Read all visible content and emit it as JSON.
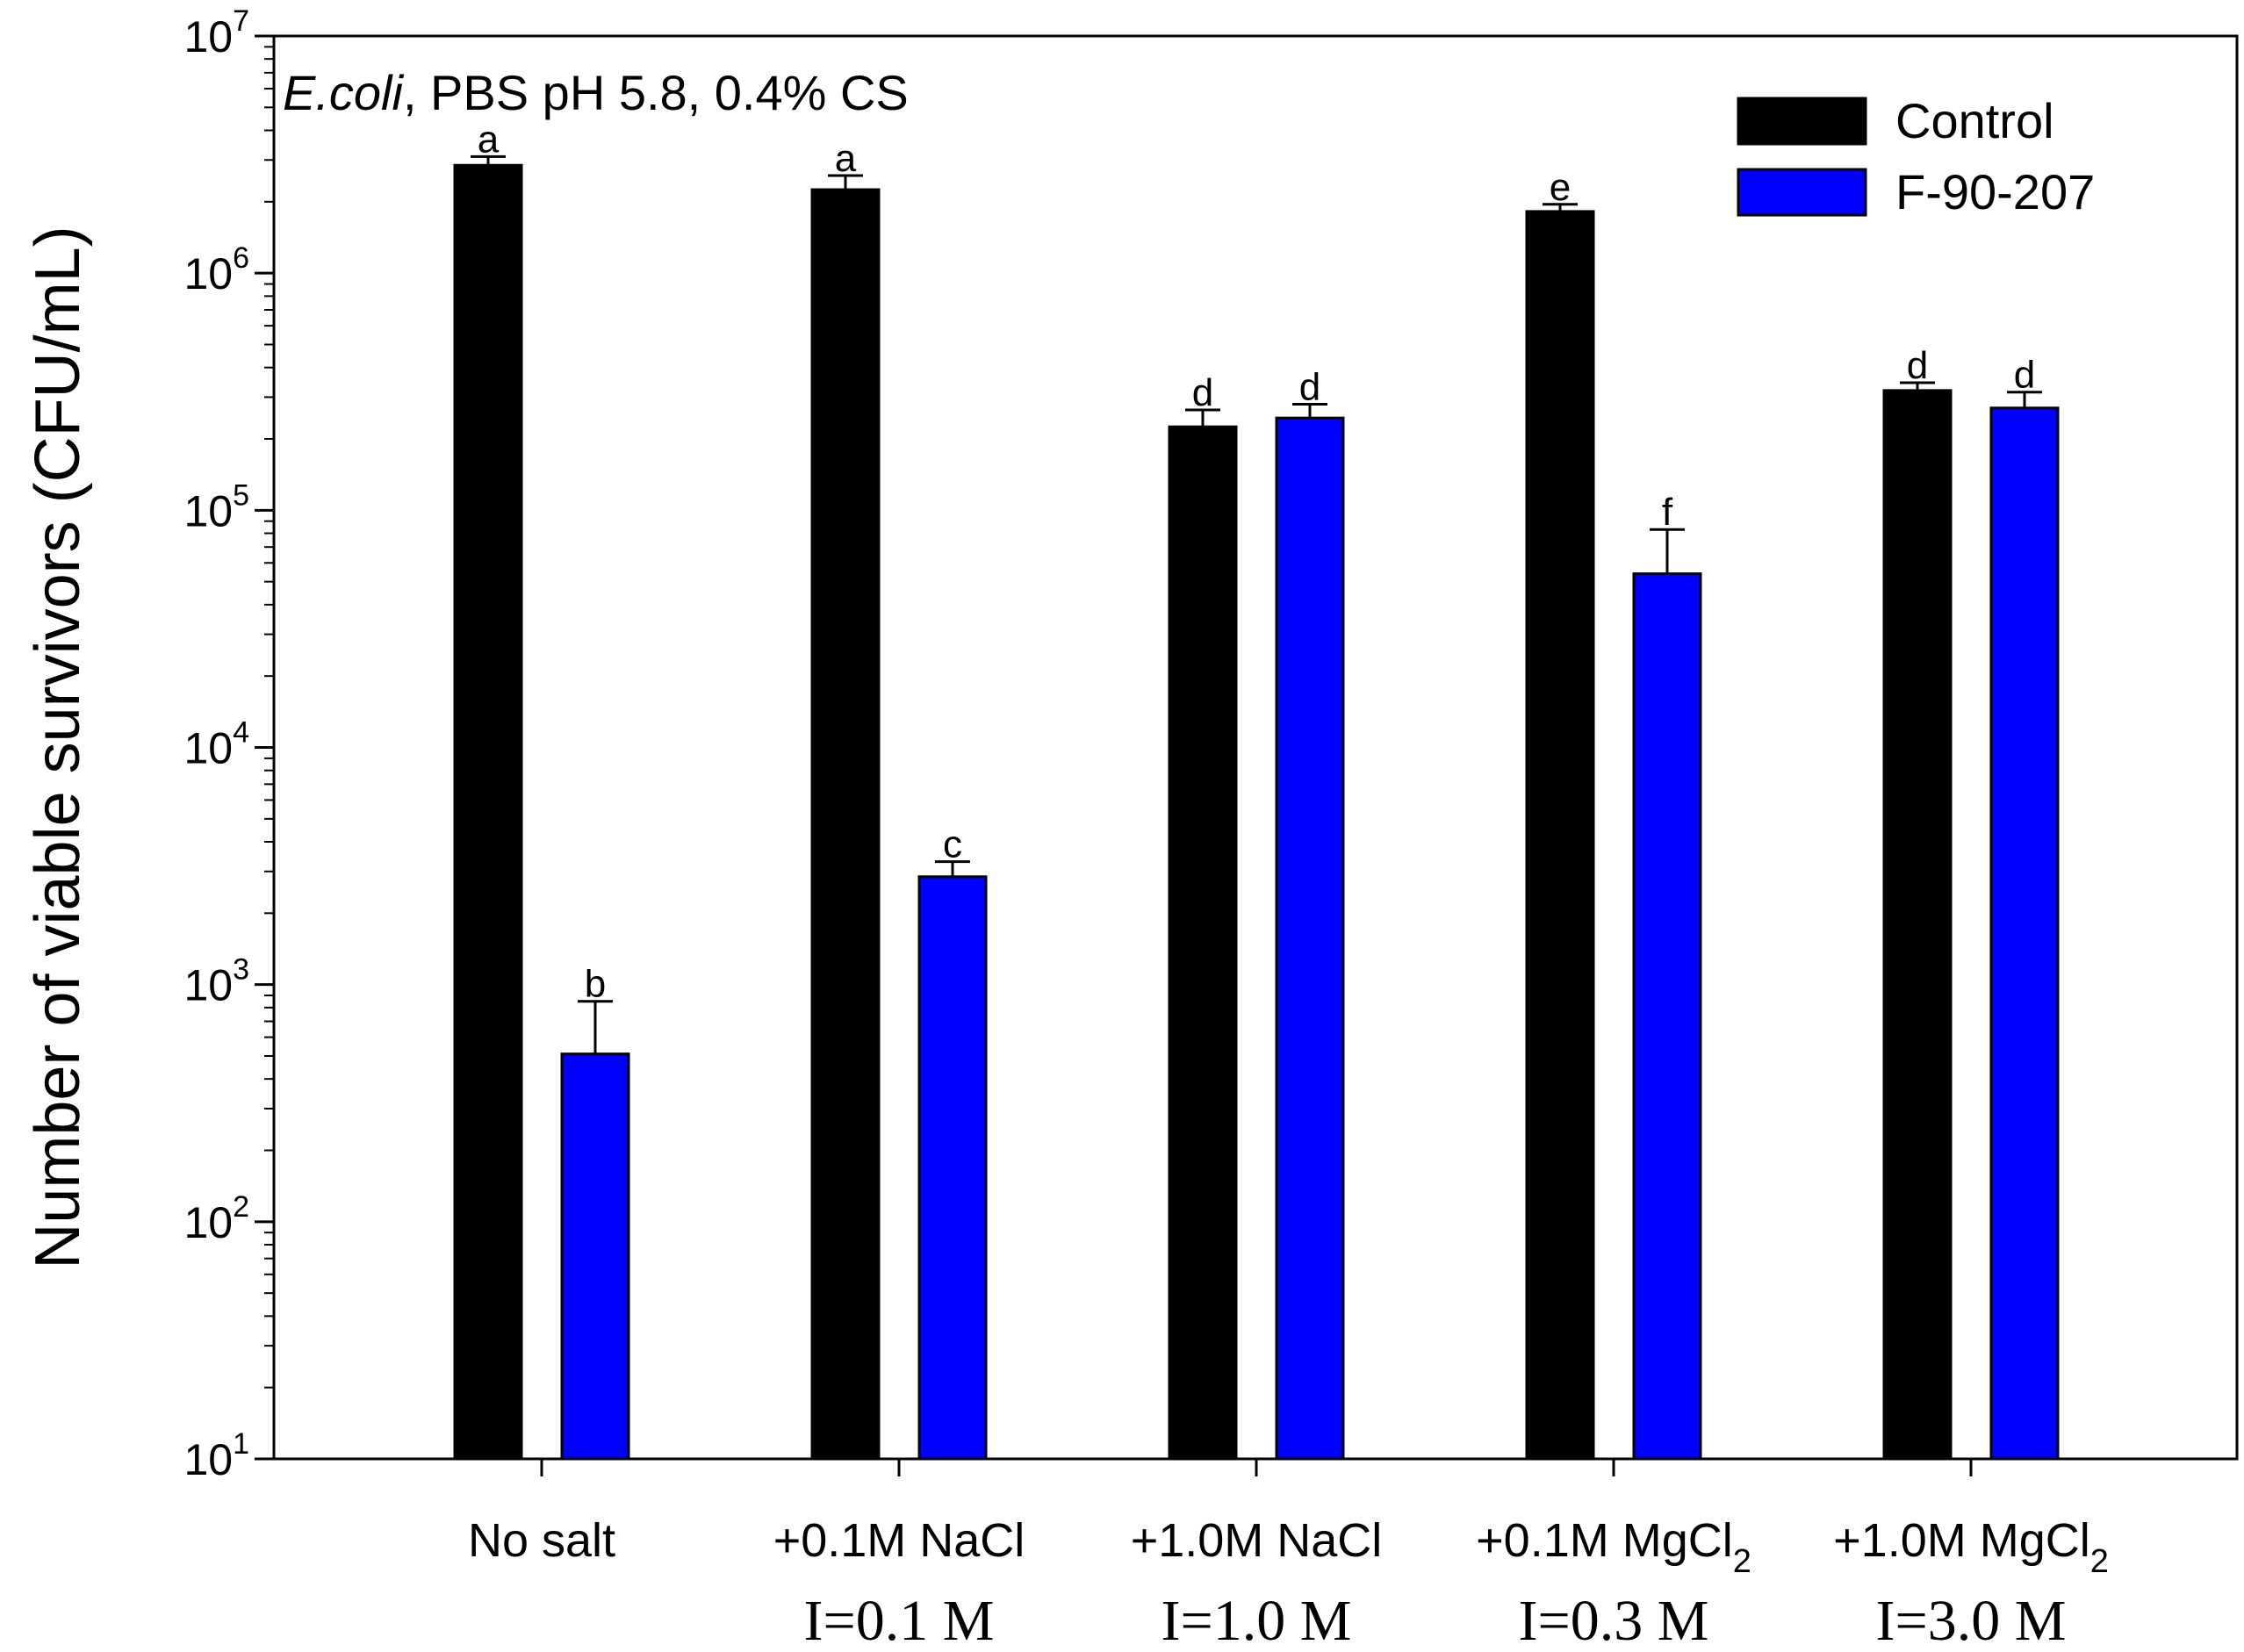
{
  "chart_data": {
    "type": "bar",
    "yscale": "log",
    "title": "",
    "annotation_prefix": "E.coli",
    "annotation_rest": ", PBS pH 5.8, 0.4% CS",
    "xlabel": "",
    "ylabel": "Number of viable survivors (CFU/mL)",
    "ylim": [
      10,
      10000000
    ],
    "ytick_exponents": [
      "1",
      "2",
      "3",
      "4",
      "5",
      "6",
      "7"
    ],
    "ytick_base": "10",
    "categories": [
      "No salt",
      "+0.1M NaCl",
      "+1.0M NaCl",
      "+0.1M MgCl",
      "+1.0M MgCl"
    ],
    "category_subscripts": [
      "",
      "",
      "",
      "2",
      "2"
    ],
    "ionic_strength": [
      "",
      "I=0.1 M",
      "I=1.0 M",
      "I=0.3 M",
      "I=3.0 M"
    ],
    "legend_position": "top-right",
    "series": [
      {
        "name": "Control",
        "color": "#000000",
        "values": [
          2850000,
          2250000,
          225000,
          1820000,
          320000
        ],
        "errors": [
          250000,
          330000,
          40000,
          130000,
          25000
        ],
        "letters": [
          "a",
          "a",
          "d",
          "e",
          "d"
        ]
      },
      {
        "name": "F-90-207",
        "color": "#0000ff",
        "values": [
          510,
          2850,
          245000,
          54000,
          270000
        ],
        "errors": [
          340,
          450,
          35000,
          29000,
          45000
        ],
        "letters": [
          "b",
          "c",
          "d",
          "f",
          "d"
        ]
      }
    ]
  }
}
